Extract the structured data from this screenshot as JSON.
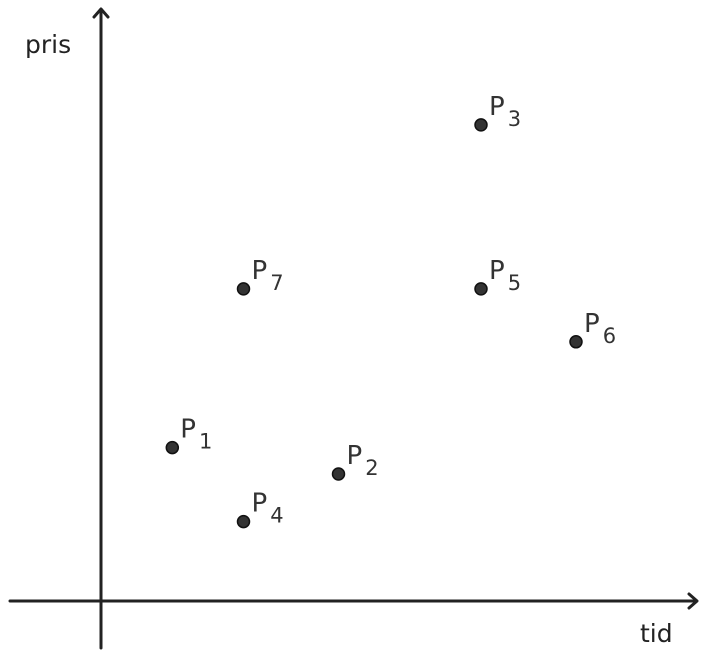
{
  "chart_data": {
    "type": "scatter",
    "title": "",
    "xlabel": "tid",
    "ylabel": "pris",
    "xlim": [
      0,
      10
    ],
    "ylim": [
      0,
      10
    ],
    "grid": false,
    "points": [
      {
        "label": "P",
        "sub": "1",
        "x": 1.5,
        "y": 2.9
      },
      {
        "label": "P",
        "sub": "2",
        "x": 5.0,
        "y": 2.4
      },
      {
        "label": "P",
        "sub": "3",
        "x": 8.0,
        "y": 9.0
      },
      {
        "label": "P",
        "sub": "4",
        "x": 3.0,
        "y": 1.5
      },
      {
        "label": "P",
        "sub": "5",
        "x": 8.0,
        "y": 5.9
      },
      {
        "label": "P",
        "sub": "6",
        "x": 10.0,
        "y": 4.9
      },
      {
        "label": "P",
        "sub": "7",
        "x": 3.0,
        "y": 5.9
      }
    ]
  },
  "colors": {
    "axis": "#222222",
    "point": "#333333",
    "text": "#333333"
  }
}
